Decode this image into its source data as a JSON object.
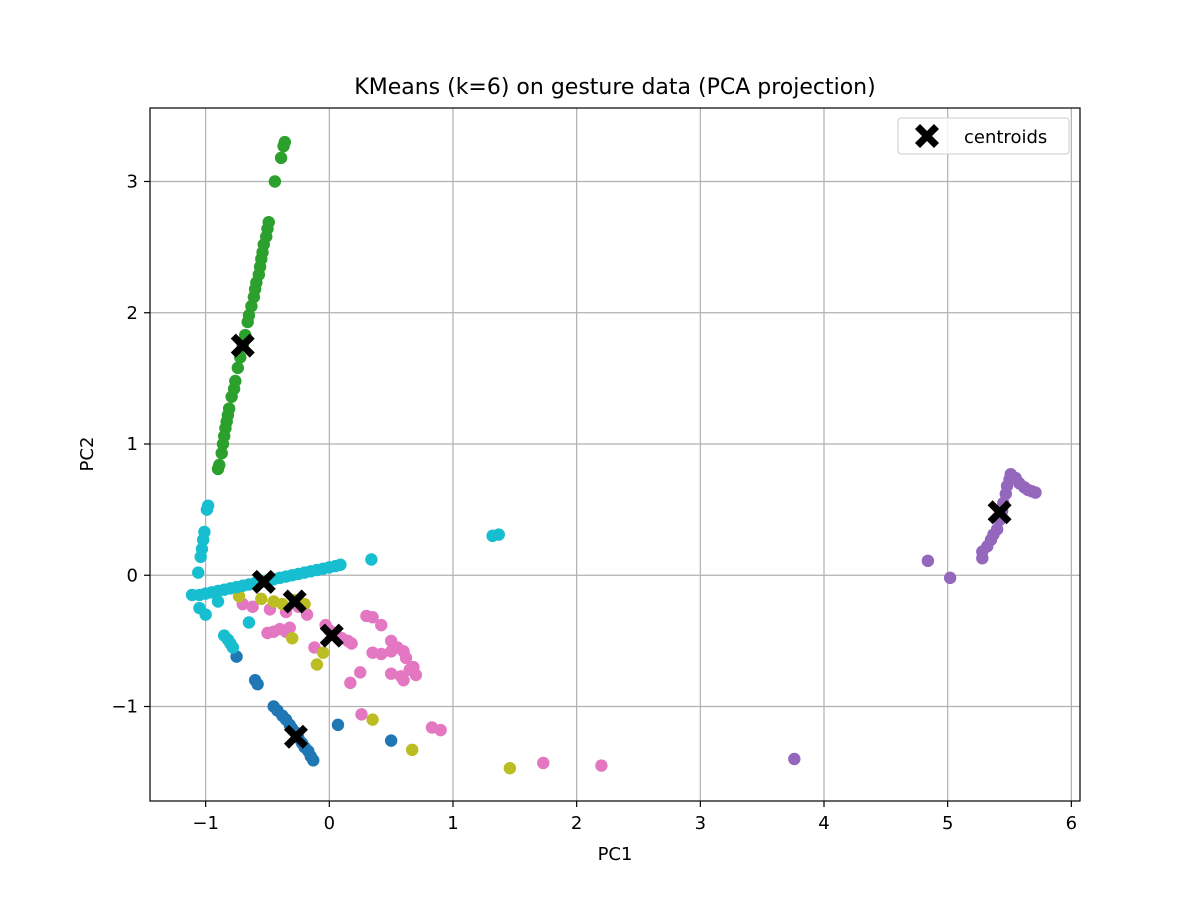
{
  "chart_data": {
    "type": "scatter",
    "title": "KMeans (k=6) on gesture data (PCA projection)",
    "xlabel": "PC1",
    "ylabel": "PC2",
    "xlim": [
      -1.45,
      6.07
    ],
    "ylim": [
      -1.72,
      3.56
    ],
    "xticks": [
      -1,
      0,
      1,
      2,
      3,
      4,
      5,
      6
    ],
    "yticks": [
      -1,
      0,
      1,
      2,
      3
    ],
    "grid": true,
    "legend": {
      "position": "top-right",
      "entries": [
        "centroids"
      ]
    },
    "colors": {
      "cluster_0": "#1f77b4",
      "cluster_1": "#2ca02c",
      "cluster_2": "#9467bd",
      "cluster_3": "#e377c2",
      "cluster_4": "#bcbd22",
      "cluster_5": "#17becf",
      "centroid": "#000000"
    },
    "series": [
      {
        "color": "cluster_0",
        "points": [
          [
            -0.75,
            -0.62
          ],
          [
            -0.6,
            -0.8
          ],
          [
            -0.58,
            -0.83
          ],
          [
            -0.45,
            -1.0
          ],
          [
            -0.42,
            -1.03
          ],
          [
            -0.38,
            -1.07
          ],
          [
            -0.35,
            -1.1
          ],
          [
            -0.32,
            -1.14
          ],
          [
            -0.3,
            -1.17
          ],
          [
            -0.27,
            -1.2
          ],
          [
            -0.25,
            -1.24
          ],
          [
            -0.22,
            -1.28
          ],
          [
            -0.2,
            -1.31
          ],
          [
            -0.17,
            -1.34
          ],
          [
            -0.15,
            -1.38
          ],
          [
            -0.13,
            -1.41
          ],
          [
            0.07,
            -1.14
          ],
          [
            0.5,
            -1.26
          ]
        ]
      },
      {
        "color": "cluster_1",
        "points": [
          [
            -0.9,
            0.81
          ],
          [
            -0.89,
            0.84
          ],
          [
            -0.87,
            0.93
          ],
          [
            -0.86,
            1.0
          ],
          [
            -0.85,
            1.06
          ],
          [
            -0.84,
            1.12
          ],
          [
            -0.83,
            1.17
          ],
          [
            -0.82,
            1.22
          ],
          [
            -0.81,
            1.27
          ],
          [
            -0.79,
            1.36
          ],
          [
            -0.77,
            1.42
          ],
          [
            -0.76,
            1.48
          ],
          [
            -0.74,
            1.58
          ],
          [
            -0.72,
            1.66
          ],
          [
            -0.7,
            1.75
          ],
          [
            -0.68,
            1.83
          ],
          [
            -0.66,
            1.93
          ],
          [
            -0.65,
            1.98
          ],
          [
            -0.63,
            2.05
          ],
          [
            -0.61,
            2.12
          ],
          [
            -0.6,
            2.18
          ],
          [
            -0.59,
            2.23
          ],
          [
            -0.57,
            2.29
          ],
          [
            -0.56,
            2.35
          ],
          [
            -0.55,
            2.41
          ],
          [
            -0.54,
            2.46
          ],
          [
            -0.53,
            2.52
          ],
          [
            -0.51,
            2.58
          ],
          [
            -0.5,
            2.64
          ],
          [
            -0.49,
            2.69
          ],
          [
            -0.44,
            3.0
          ],
          [
            -0.39,
            3.18
          ],
          [
            -0.37,
            3.27
          ],
          [
            -0.36,
            3.3
          ]
        ]
      },
      {
        "color": "cluster_2",
        "points": [
          [
            4.84,
            0.11
          ],
          [
            5.02,
            -0.02
          ],
          [
            5.28,
            0.13
          ],
          [
            5.28,
            0.18
          ],
          [
            5.32,
            0.22
          ],
          [
            5.35,
            0.27
          ],
          [
            5.37,
            0.31
          ],
          [
            5.4,
            0.35
          ],
          [
            5.42,
            0.42
          ],
          [
            5.44,
            0.49
          ],
          [
            5.45,
            0.55
          ],
          [
            5.47,
            0.62
          ],
          [
            5.48,
            0.68
          ],
          [
            5.5,
            0.73
          ],
          [
            5.51,
            0.77
          ],
          [
            5.55,
            0.74
          ],
          [
            5.58,
            0.7
          ],
          [
            5.62,
            0.67
          ],
          [
            5.65,
            0.65
          ],
          [
            5.68,
            0.64
          ],
          [
            5.71,
            0.63
          ],
          [
            3.76,
            -1.4
          ]
        ]
      },
      {
        "color": "cluster_3",
        "points": [
          [
            -0.7,
            -0.22
          ],
          [
            -0.62,
            -0.24
          ],
          [
            -0.48,
            -0.26
          ],
          [
            -0.35,
            -0.28
          ],
          [
            -0.25,
            -0.24
          ],
          [
            -0.18,
            -0.3
          ],
          [
            -0.5,
            -0.44
          ],
          [
            -0.45,
            -0.43
          ],
          [
            -0.4,
            -0.41
          ],
          [
            -0.35,
            -0.43
          ],
          [
            -0.32,
            -0.4
          ],
          [
            -0.12,
            -0.55
          ],
          [
            -0.03,
            -0.38
          ],
          [
            0.0,
            -0.42
          ],
          [
            0.05,
            -0.44
          ],
          [
            0.1,
            -0.48
          ],
          [
            0.15,
            -0.5
          ],
          [
            0.18,
            -0.52
          ],
          [
            0.3,
            -0.31
          ],
          [
            0.35,
            -0.32
          ],
          [
            0.42,
            -0.38
          ],
          [
            0.35,
            -0.59
          ],
          [
            0.42,
            -0.6
          ],
          [
            0.5,
            -0.58
          ],
          [
            0.5,
            -0.5
          ],
          [
            0.55,
            -0.55
          ],
          [
            0.6,
            -0.58
          ],
          [
            0.5,
            -0.75
          ],
          [
            0.58,
            -0.77
          ],
          [
            0.6,
            -0.8
          ],
          [
            0.65,
            -0.72
          ],
          [
            0.68,
            -0.7
          ],
          [
            0.7,
            -0.76
          ],
          [
            0.62,
            -0.63
          ],
          [
            0.25,
            -0.74
          ],
          [
            0.17,
            -0.82
          ],
          [
            0.26,
            -1.06
          ],
          [
            0.83,
            -1.16
          ],
          [
            0.9,
            -1.18
          ],
          [
            1.73,
            -1.43
          ],
          [
            2.2,
            -1.45
          ]
        ]
      },
      {
        "color": "cluster_4",
        "points": [
          [
            -0.73,
            -0.16
          ],
          [
            -0.55,
            -0.18
          ],
          [
            -0.45,
            -0.2
          ],
          [
            -0.38,
            -0.22
          ],
          [
            -0.28,
            -0.19
          ],
          [
            -0.2,
            -0.22
          ],
          [
            -0.3,
            -0.48
          ],
          [
            -0.1,
            -0.68
          ],
          [
            -0.05,
            -0.59
          ],
          [
            0.35,
            -1.1
          ],
          [
            0.67,
            -1.33
          ],
          [
            1.46,
            -1.47
          ]
        ]
      },
      {
        "color": "cluster_5",
        "points": [
          [
            -1.06,
            0.02
          ],
          [
            -1.04,
            0.14
          ],
          [
            -1.03,
            0.2
          ],
          [
            -1.02,
            0.27
          ],
          [
            -1.01,
            0.33
          ],
          [
            -0.99,
            0.5
          ],
          [
            -0.98,
            0.53
          ],
          [
            -1.11,
            -0.15
          ],
          [
            -1.05,
            -0.15
          ],
          [
            -1.0,
            -0.14
          ],
          [
            -0.95,
            -0.13
          ],
          [
            -0.9,
            -0.12
          ],
          [
            -0.85,
            -0.11
          ],
          [
            -0.8,
            -0.1
          ],
          [
            -0.75,
            -0.09
          ],
          [
            -0.7,
            -0.08
          ],
          [
            -0.65,
            -0.07
          ],
          [
            -0.6,
            -0.06
          ],
          [
            -0.55,
            -0.05
          ],
          [
            -0.5,
            -0.04
          ],
          [
            -0.45,
            -0.03
          ],
          [
            -0.4,
            -0.02
          ],
          [
            -0.35,
            -0.01
          ],
          [
            -0.3,
            0.0
          ],
          [
            -0.25,
            0.01
          ],
          [
            -0.2,
            0.02
          ],
          [
            -0.15,
            0.03
          ],
          [
            -0.1,
            0.04
          ],
          [
            -0.05,
            0.05
          ],
          [
            0.0,
            0.06
          ],
          [
            0.05,
            0.07
          ],
          [
            0.09,
            0.08
          ],
          [
            -1.05,
            -0.25
          ],
          [
            -1.0,
            -0.3
          ],
          [
            -0.9,
            -0.2
          ],
          [
            -0.85,
            -0.46
          ],
          [
            -0.82,
            -0.49
          ],
          [
            -0.8,
            -0.52
          ],
          [
            -0.78,
            -0.55
          ],
          [
            -0.65,
            -0.36
          ],
          [
            0.34,
            0.12
          ],
          [
            1.32,
            0.3
          ],
          [
            1.37,
            0.31
          ]
        ]
      }
    ],
    "centroids": [
      [
        -0.7,
        1.75
      ],
      [
        -0.53,
        -0.05
      ],
      [
        -0.28,
        -0.2
      ],
      [
        0.02,
        -0.46
      ],
      [
        -0.27,
        -1.23
      ],
      [
        5.42,
        0.48
      ]
    ]
  }
}
